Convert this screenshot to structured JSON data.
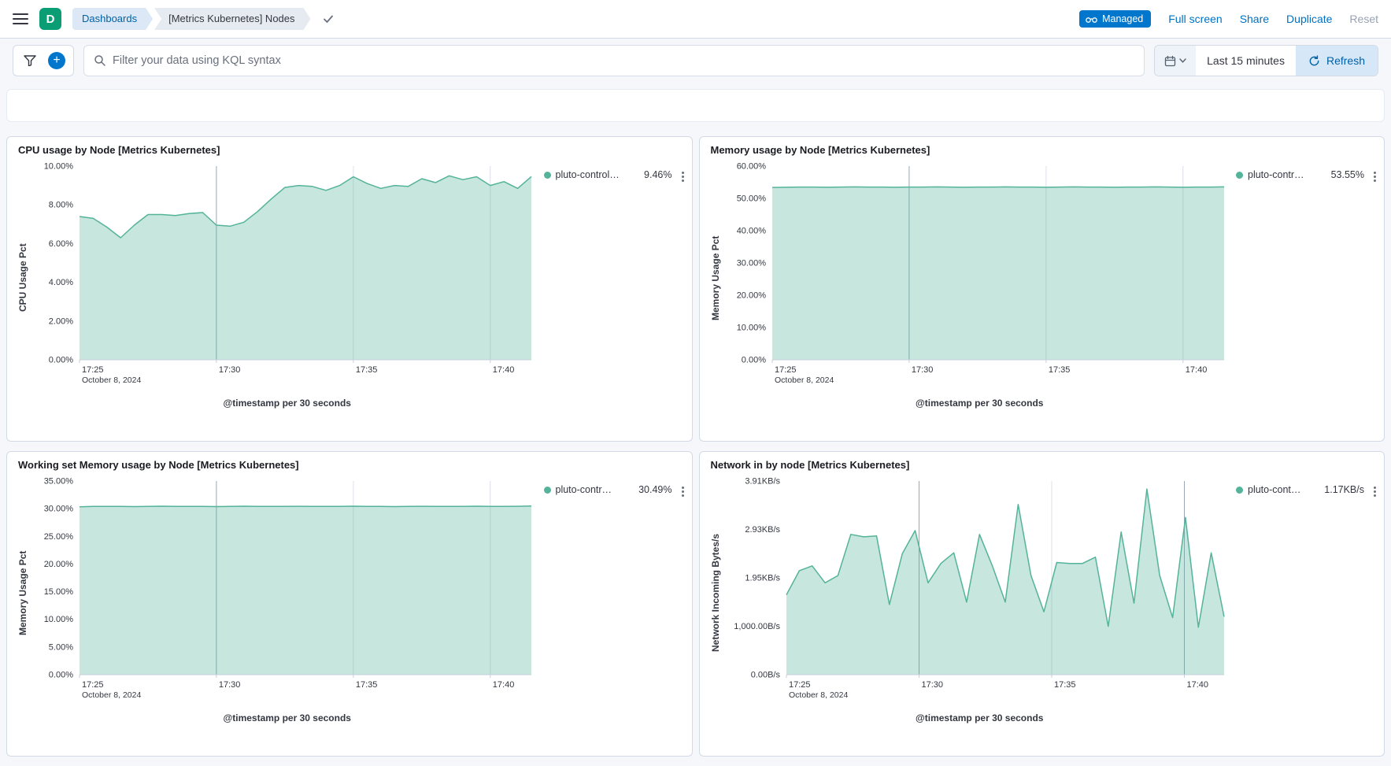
{
  "header": {
    "logo": "D",
    "breadcrumbs": [
      {
        "label": "Dashboards"
      },
      {
        "label": "[Metrics Kubernetes] Nodes"
      }
    ],
    "managed_badge": "Managed",
    "actions": [
      {
        "label": "Full screen",
        "enabled": true
      },
      {
        "label": "Share",
        "enabled": true
      },
      {
        "label": "Duplicate",
        "enabled": true
      },
      {
        "label": "Reset",
        "enabled": false
      }
    ]
  },
  "filter_bar": {
    "search_placeholder": "Filter your data using KQL syntax",
    "time_range": "Last 15 minutes",
    "refresh_label": "Refresh"
  },
  "colors": {
    "series": "#54B399",
    "accent_blue": "#0071C2",
    "badge_blue": "#0077CC"
  },
  "chart_data": [
    {
      "type": "area",
      "title": "CPU usage by Node [Metrics Kubernetes]",
      "ylabel": "CPU Usage Pct",
      "xlabel": "@timestamp per 30 seconds",
      "x_date": "October 8, 2024",
      "x_max": 33,
      "x_ticks": [
        {
          "pos": 0,
          "label": "17:25"
        },
        {
          "pos": 10,
          "label": "17:30",
          "strong": true
        },
        {
          "pos": 20,
          "label": "17:35"
        },
        {
          "pos": 30,
          "label": "17:40"
        }
      ],
      "y_max": 10,
      "y_ticks": [
        {
          "value": 0,
          "label": "0.00%"
        },
        {
          "value": 2,
          "label": "2.00%"
        },
        {
          "value": 4,
          "label": "4.00%"
        },
        {
          "value": 6,
          "label": "6.00%"
        },
        {
          "value": 8,
          "label": "8.00%"
        },
        {
          "value": 10,
          "label": "10.00%"
        }
      ],
      "color": "#54B399",
      "series": [
        {
          "name": "pluto-control…",
          "value_label": "9.46%",
          "values": [
            7.4,
            7.3,
            6.85,
            6.3,
            6.95,
            7.5,
            7.5,
            7.45,
            7.55,
            7.6,
            6.95,
            6.9,
            7.1,
            7.65,
            8.3,
            8.9,
            9.0,
            8.95,
            8.75,
            9.0,
            9.45,
            9.1,
            8.85,
            9.0,
            8.95,
            9.35,
            9.15,
            9.5,
            9.3,
            9.45,
            9.0,
            9.2,
            8.85,
            9.46
          ]
        }
      ]
    },
    {
      "type": "area",
      "title": "Memory usage by Node [Metrics Kubernetes]",
      "ylabel": "Memory Usage Pct",
      "xlabel": "@timestamp per 30 seconds",
      "x_date": "October 8, 2024",
      "x_max": 33,
      "x_ticks": [
        {
          "pos": 0,
          "label": "17:25"
        },
        {
          "pos": 10,
          "label": "17:30",
          "strong": true
        },
        {
          "pos": 20,
          "label": "17:35"
        },
        {
          "pos": 30,
          "label": "17:40"
        }
      ],
      "y_max": 60,
      "y_ticks": [
        {
          "value": 0,
          "label": "0.00%"
        },
        {
          "value": 10,
          "label": "10.00%"
        },
        {
          "value": 20,
          "label": "20.00%"
        },
        {
          "value": 30,
          "label": "30.00%"
        },
        {
          "value": 40,
          "label": "40.00%"
        },
        {
          "value": 50,
          "label": "50.00%"
        },
        {
          "value": 60,
          "label": "60.00%"
        }
      ],
      "color": "#54B399",
      "series": [
        {
          "name": "pluto-contr…",
          "value_label": "53.55%",
          "values": [
            53.4,
            53.45,
            53.5,
            53.5,
            53.45,
            53.5,
            53.55,
            53.5,
            53.5,
            53.45,
            53.5,
            53.5,
            53.55,
            53.5,
            53.45,
            53.5,
            53.5,
            53.55,
            53.5,
            53.5,
            53.45,
            53.5,
            53.55,
            53.5,
            53.5,
            53.45,
            53.5,
            53.5,
            53.55,
            53.5,
            53.45,
            53.5,
            53.5,
            53.55
          ]
        }
      ]
    },
    {
      "type": "area",
      "title": "Working set Memory usage by Node [Metrics Kubernetes]",
      "ylabel": "Memory Usage Pct",
      "xlabel": "@timestamp per 30 seconds",
      "x_date": "October 8, 2024",
      "x_max": 33,
      "x_ticks": [
        {
          "pos": 0,
          "label": "17:25"
        },
        {
          "pos": 10,
          "label": "17:30",
          "strong": true
        },
        {
          "pos": 20,
          "label": "17:35"
        },
        {
          "pos": 30,
          "label": "17:40"
        }
      ],
      "y_max": 35,
      "y_ticks": [
        {
          "value": 0,
          "label": "0.00%"
        },
        {
          "value": 5,
          "label": "5.00%"
        },
        {
          "value": 10,
          "label": "10.00%"
        },
        {
          "value": 15,
          "label": "15.00%"
        },
        {
          "value": 20,
          "label": "20.00%"
        },
        {
          "value": 25,
          "label": "25.00%"
        },
        {
          "value": 30,
          "label": "30.00%"
        },
        {
          "value": 35,
          "label": "35.00%"
        }
      ],
      "color": "#54B399",
      "series": [
        {
          "name": "pluto-contr…",
          "value_label": "30.49%",
          "values": [
            30.35,
            30.4,
            30.42,
            30.4,
            30.38,
            30.42,
            30.45,
            30.4,
            30.42,
            30.4,
            30.38,
            30.42,
            30.45,
            30.42,
            30.4,
            30.42,
            30.44,
            30.42,
            30.4,
            30.42,
            30.45,
            30.42,
            30.4,
            30.38,
            30.42,
            30.44,
            30.42,
            30.4,
            30.42,
            30.45,
            30.42,
            30.4,
            30.44,
            30.49
          ]
        }
      ]
    },
    {
      "type": "area",
      "title": "Network in by node [Metrics Kubernetes]",
      "ylabel": "Network Incoming Bytes/s",
      "xlabel": "@timestamp per 30 seconds",
      "x_date": "October 8, 2024",
      "x_max": 33,
      "x_ticks": [
        {
          "pos": 0,
          "label": "17:25"
        },
        {
          "pos": 10,
          "label": "17:30",
          "strong": true
        },
        {
          "pos": 20,
          "label": "17:35"
        },
        {
          "pos": 30,
          "label": "17:40",
          "strong": true
        }
      ],
      "y_max": 4004,
      "y_ticks": [
        {
          "value": 0,
          "label": "0.00B/s"
        },
        {
          "value": 1000,
          "label": "1,000.00B/s"
        },
        {
          "value": 2000,
          "label": "1.95KB/s"
        },
        {
          "value": 3000,
          "label": "2.93KB/s"
        },
        {
          "value": 4000,
          "label": "3.91KB/s"
        }
      ],
      "color": "#54B399",
      "series": [
        {
          "name": "pluto-cont…",
          "value_label": "1.17KB/s",
          "values": [
            1650,
            2150,
            2250,
            1900,
            2050,
            2900,
            2850,
            2870,
            1450,
            2500,
            2980,
            1900,
            2300,
            2520,
            1500,
            2900,
            2250,
            1500,
            3520,
            2050,
            1300,
            2320,
            2300,
            2300,
            2430,
            1000,
            2950,
            1480,
            3840,
            2050,
            1180,
            3250,
            980,
            2520,
            1198
          ]
        }
      ]
    }
  ]
}
